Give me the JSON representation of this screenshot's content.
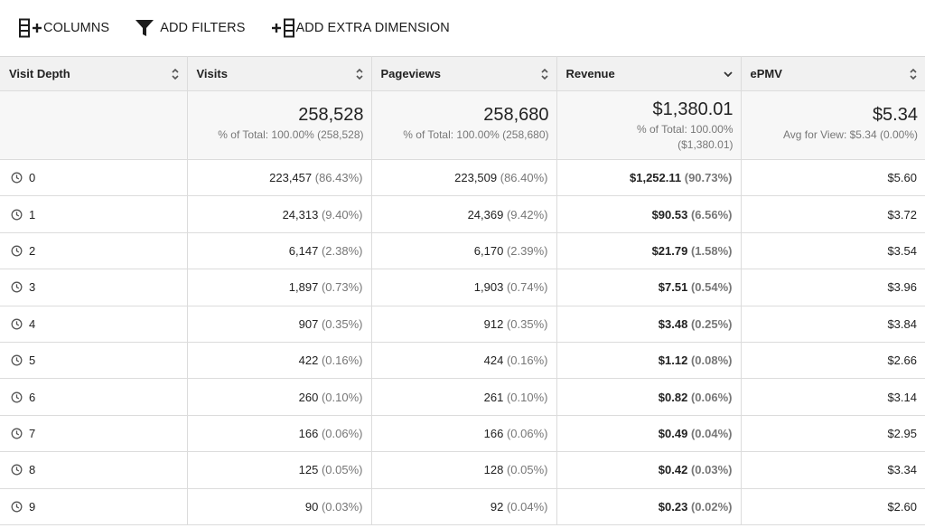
{
  "toolbar": {
    "columns_label": "COLUMNS",
    "filters_label": "ADD FILTERS",
    "dimension_label": "ADD EXTRA DIMENSION"
  },
  "headers": {
    "depth": "Visit Depth",
    "visits": "Visits",
    "pageviews": "Pageviews",
    "revenue": "Revenue",
    "epmv": "ePMV"
  },
  "summary": {
    "visits_total": "258,528",
    "visits_sub": "% of Total: 100.00% (258,528)",
    "pageviews_total": "258,680",
    "pageviews_sub": "% of Total: 100.00% (258,680)",
    "revenue_total": "$1,380.01",
    "revenue_sub1": "% of Total: 100.00%",
    "revenue_sub2": "($1,380.01)",
    "epmv_total": "$5.34",
    "epmv_sub": "Avg for View: $5.34 (0.00%)"
  },
  "rows": [
    {
      "depth": "0",
      "visits": "223,457",
      "visits_pct": "(86.43%)",
      "pageviews": "223,509",
      "pageviews_pct": "(86.40%)",
      "revenue": "$1,252.11",
      "revenue_pct": "(90.73%)",
      "epmv": "$5.60"
    },
    {
      "depth": "1",
      "visits": "24,313",
      "visits_pct": "(9.40%)",
      "pageviews": "24,369",
      "pageviews_pct": "(9.42%)",
      "revenue": "$90.53",
      "revenue_pct": "(6.56%)",
      "epmv": "$3.72"
    },
    {
      "depth": "2",
      "visits": "6,147",
      "visits_pct": "(2.38%)",
      "pageviews": "6,170",
      "pageviews_pct": "(2.39%)",
      "revenue": "$21.79",
      "revenue_pct": "(1.58%)",
      "epmv": "$3.54"
    },
    {
      "depth": "3",
      "visits": "1,897",
      "visits_pct": "(0.73%)",
      "pageviews": "1,903",
      "pageviews_pct": "(0.74%)",
      "revenue": "$7.51",
      "revenue_pct": "(0.54%)",
      "epmv": "$3.96"
    },
    {
      "depth": "4",
      "visits": "907",
      "visits_pct": "(0.35%)",
      "pageviews": "912",
      "pageviews_pct": "(0.35%)",
      "revenue": "$3.48",
      "revenue_pct": "(0.25%)",
      "epmv": "$3.84"
    },
    {
      "depth": "5",
      "visits": "422",
      "visits_pct": "(0.16%)",
      "pageviews": "424",
      "pageviews_pct": "(0.16%)",
      "revenue": "$1.12",
      "revenue_pct": "(0.08%)",
      "epmv": "$2.66"
    },
    {
      "depth": "6",
      "visits": "260",
      "visits_pct": "(0.10%)",
      "pageviews": "261",
      "pageviews_pct": "(0.10%)",
      "revenue": "$0.82",
      "revenue_pct": "(0.06%)",
      "epmv": "$3.14"
    },
    {
      "depth": "7",
      "visits": "166",
      "visits_pct": "(0.06%)",
      "pageviews": "166",
      "pageviews_pct": "(0.06%)",
      "revenue": "$0.49",
      "revenue_pct": "(0.04%)",
      "epmv": "$2.95"
    },
    {
      "depth": "8",
      "visits": "125",
      "visits_pct": "(0.05%)",
      "pageviews": "128",
      "pageviews_pct": "(0.05%)",
      "revenue": "$0.42",
      "revenue_pct": "(0.03%)",
      "epmv": "$3.34"
    },
    {
      "depth": "9",
      "visits": "90",
      "visits_pct": "(0.03%)",
      "pageviews": "92",
      "pageviews_pct": "(0.04%)",
      "revenue": "$0.23",
      "revenue_pct": "(0.02%)",
      "epmv": "$2.60"
    }
  ],
  "icons": {
    "columns": "columns-plus-icon",
    "filters": "funnel-icon",
    "dimension": "plus-dimension-icon",
    "sort_both": "sort-updown-icon",
    "sort_desc": "chevron-down-icon",
    "row": "clock-icon"
  }
}
